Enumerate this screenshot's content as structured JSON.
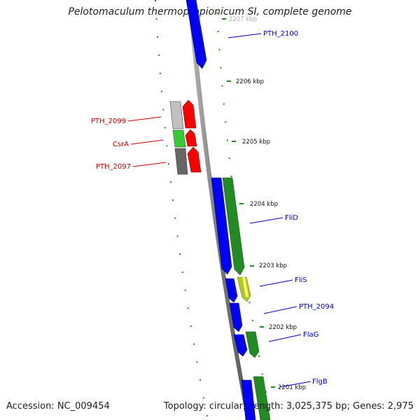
{
  "title": "Pelotomaculum thermopropionicum SI, complete genome",
  "accession": "Accession: NC_009454",
  "summary": "Topology: circular; Length: 3,025,375 bp; Genes: 2,975",
  "scale_labels": [
    "2207 kbp",
    "2206 kbp",
    "2205 kbp",
    "2204 kbp",
    "2203 kbp",
    "2202 kbp",
    "2201 kbp"
  ],
  "forward_labels": [
    "PTH_2100",
    "FliD",
    "FliS",
    "PTH_2094",
    "FlaG",
    "FlgB"
  ],
  "reverse_labels": [
    "PTH_2099",
    "CsrA",
    "PTH_2097"
  ],
  "colors": {
    "cds_forward": "#0000ff",
    "gene_forward": "#228b22",
    "cds_reverse": "#ff0000",
    "gene_reverse_light": "#c0c0c0",
    "gene_reverse_green": "#33cc33",
    "gene_reverse_dark": "#666666",
    "fliS_gene": "#aacc22",
    "backbone": "#888888",
    "forward_label": "#0000cc",
    "reverse_label": "#cc0000",
    "ticks": "#228b22"
  }
}
